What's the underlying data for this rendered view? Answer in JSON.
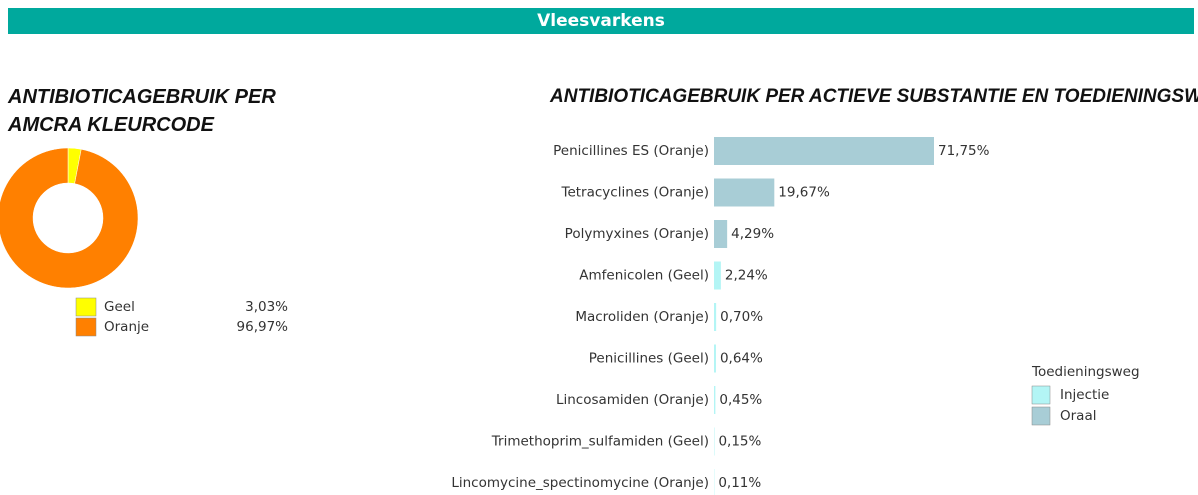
{
  "header": {
    "title": "Vleesvarkens"
  },
  "chart_data": [
    {
      "type": "donut",
      "title": "ANTIBIOTICAGEBRUIK PER AMCRA KLEURCODE",
      "categories": [
        "Geel",
        "Oranje"
      ],
      "values": [
        3.03,
        96.97
      ],
      "value_labels": [
        "3,03%",
        "96,97%"
      ],
      "colors": [
        "#ffff00",
        "#ff8000"
      ]
    },
    {
      "type": "bar",
      "orientation": "horizontal",
      "title": "ANTIBIOTICAGEBRUIK PER ACTIEVE SUBSTANTIE EN TOEDIENINGSWEG",
      "categories": [
        "Penicillines ES (Oranje)",
        "Tetracyclines (Oranje)",
        "Polymyxines (Oranje)",
        "Amfenicolen (Geel)",
        "Macroliden (Oranje)",
        "Penicillines (Geel)",
        "Lincosamiden (Oranje)",
        "Trimethoprim_sulfamiden (Geel)",
        "Lincomycine_spectinomycine (Oranje)"
      ],
      "legend_title": "Toedieningsweg",
      "series": [
        {
          "name": "Injectie",
          "color": "#b3f5f5",
          "values": [
            null,
            null,
            null,
            2.24,
            0.7,
            0.64,
            0.45,
            0.15,
            0.11
          ],
          "value_labels": [
            null,
            null,
            null,
            "2,24%",
            "0,70%",
            "0,64%",
            "0,45%",
            "0,15%",
            "0,11%"
          ]
        },
        {
          "name": "Oraal",
          "color": "#a8cdd6",
          "values": [
            71.75,
            19.67,
            4.29,
            null,
            null,
            null,
            null,
            null,
            null
          ],
          "value_labels": [
            "71,75%",
            "19,67%",
            "4,29%",
            null,
            null,
            null,
            null,
            null,
            null
          ]
        }
      ]
    }
  ]
}
